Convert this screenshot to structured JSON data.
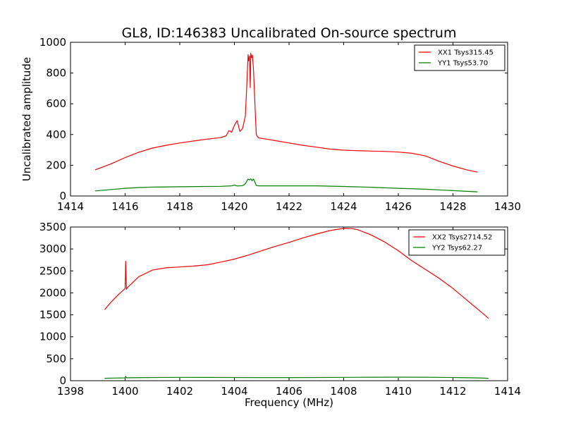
{
  "title": "GL8, ID:146383 Uncalibrated On-source spectrum",
  "chart_data": [
    {
      "type": "line",
      "ylabel": "Uncalibrated amplitude",
      "xlabel": "",
      "xlim": [
        1414,
        1430
      ],
      "ylim": [
        0,
        1000
      ],
      "xticks": [
        1414,
        1416,
        1418,
        1420,
        1422,
        1424,
        1426,
        1428,
        1430
      ],
      "yticks": [
        0,
        200,
        400,
        600,
        800,
        1000
      ],
      "legend_position": "top-right",
      "series": [
        {
          "name": "XX1 Tsys315.45",
          "color": "#ff0000",
          "x": [
            1414.9,
            1415.5,
            1416.0,
            1416.5,
            1417.0,
            1417.5,
            1418.0,
            1418.5,
            1419.0,
            1419.5,
            1419.7,
            1419.8,
            1419.9,
            1420.0,
            1420.1,
            1420.2,
            1420.3,
            1420.4,
            1420.45,
            1420.5,
            1420.52,
            1420.55,
            1420.58,
            1420.6,
            1420.63,
            1420.66,
            1420.7,
            1420.75,
            1420.8,
            1420.85,
            1420.9,
            1421.0,
            1421.5,
            1422.0,
            1422.5,
            1423.0,
            1423.5,
            1424.0,
            1424.5,
            1425.0,
            1425.5,
            1426.0,
            1426.5,
            1427.0,
            1427.5,
            1428.0,
            1428.5,
            1428.9
          ],
          "values": [
            170,
            210,
            250,
            285,
            312,
            330,
            345,
            358,
            370,
            380,
            392,
            425,
            415,
            460,
            490,
            420,
            440,
            520,
            700,
            920,
            880,
            910,
            705,
            930,
            900,
            915,
            820,
            600,
            400,
            385,
            378,
            375,
            360,
            345,
            330,
            318,
            305,
            298,
            295,
            292,
            290,
            286,
            278,
            260,
            225,
            195,
            170,
            155
          ]
        },
        {
          "name": "YY1 Tsys53.70",
          "color": "#008000",
          "x": [
            1414.9,
            1415.5,
            1416.0,
            1416.5,
            1417.0,
            1418.0,
            1419.0,
            1419.5,
            1419.9,
            1420.0,
            1420.1,
            1420.3,
            1420.4,
            1420.5,
            1420.55,
            1420.6,
            1420.65,
            1420.7,
            1420.75,
            1420.8,
            1420.9,
            1421.0,
            1422.0,
            1423.0,
            1424.0,
            1425.0,
            1426.0,
            1427.0,
            1428.0,
            1428.9
          ],
          "values": [
            33,
            42,
            50,
            55,
            58,
            60,
            62,
            63,
            66,
            71,
            65,
            67,
            80,
            110,
            105,
            112,
            100,
            110,
            90,
            68,
            66,
            66,
            66,
            66,
            62,
            57,
            50,
            44,
            35,
            27
          ]
        }
      ]
    },
    {
      "type": "line",
      "ylabel": "",
      "xlabel": "Frequency (MHz)",
      "xlim": [
        1398,
        1414
      ],
      "ylim": [
        0,
        3500
      ],
      "xticks": [
        1398,
        1400,
        1402,
        1404,
        1406,
        1408,
        1410,
        1412,
        1414
      ],
      "yticks": [
        0,
        500,
        1000,
        1500,
        2000,
        2500,
        3000,
        3500
      ],
      "legend_position": "top-right",
      "series": [
        {
          "name": "XX2 Tsys2714.52",
          "color": "#ff0000",
          "x": [
            1399.25,
            1399.5,
            1399.75,
            1400.0,
            1400.02,
            1400.05,
            1400.08,
            1400.3,
            1400.5,
            1401.0,
            1401.5,
            1402.0,
            1402.5,
            1403.0,
            1403.5,
            1404.0,
            1404.5,
            1405.0,
            1405.5,
            1406.0,
            1406.5,
            1407.0,
            1407.5,
            1408.0,
            1408.3,
            1408.5,
            1409.0,
            1409.5,
            1410.0,
            1410.5,
            1411.0,
            1411.5,
            1412.0,
            1412.5,
            1413.0,
            1413.3
          ],
          "values": [
            1620,
            1800,
            1960,
            2100,
            2720,
            2080,
            2120,
            2250,
            2370,
            2520,
            2570,
            2590,
            2610,
            2640,
            2700,
            2770,
            2860,
            2960,
            3060,
            3150,
            3250,
            3340,
            3420,
            3470,
            3465,
            3440,
            3320,
            3160,
            2960,
            2730,
            2530,
            2330,
            2100,
            1840,
            1580,
            1420
          ]
        },
        {
          "name": "YY2 Tsys62.27",
          "color": "#008000",
          "x": [
            1399.25,
            1399.5,
            1400.0,
            1400.02,
            1400.05,
            1401.0,
            1402.0,
            1403.0,
            1404.0,
            1405.0,
            1406.0,
            1407.0,
            1408.0,
            1409.0,
            1410.0,
            1411.0,
            1412.0,
            1413.0,
            1413.3
          ],
          "values": [
            55,
            60,
            65,
            100,
            66,
            72,
            75,
            74,
            72,
            70,
            70,
            72,
            75,
            78,
            80,
            78,
            72,
            62,
            55
          ]
        }
      ]
    }
  ]
}
